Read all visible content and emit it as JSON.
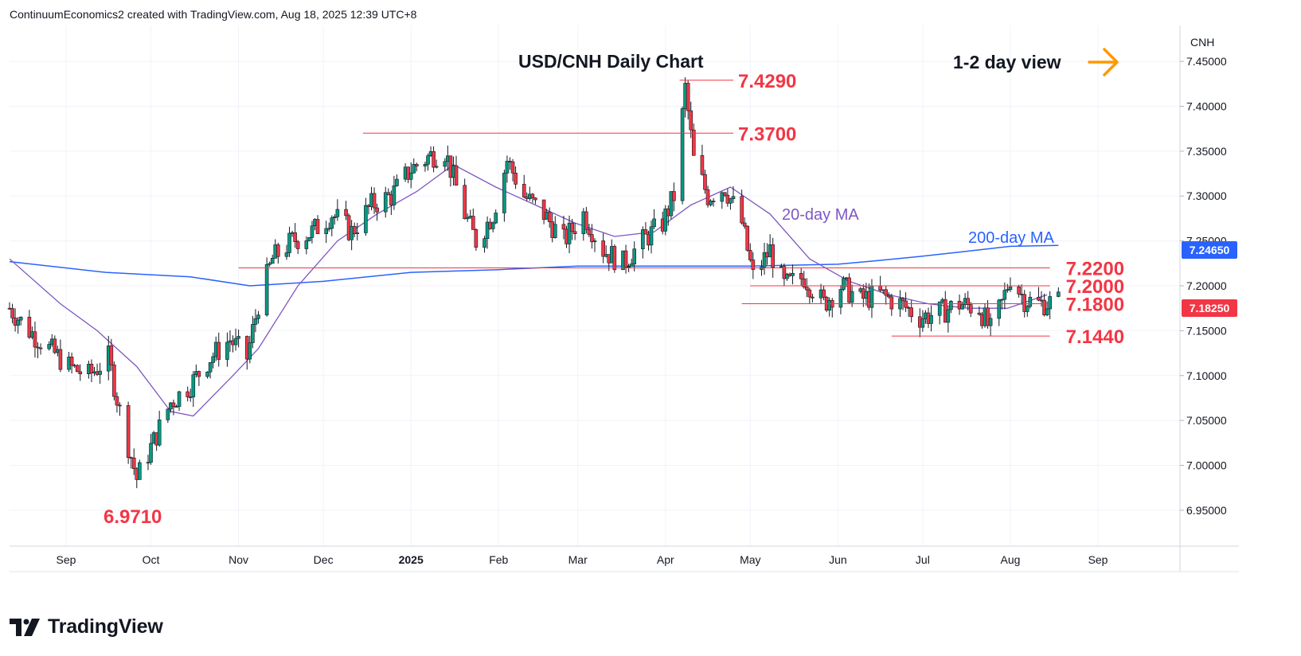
{
  "header": {
    "text": "ContinuumEconomics2 created with TradingView.com, Aug 18, 2025 12:39 UTC+8"
  },
  "brand": {
    "name": "TradingView"
  },
  "colors": {
    "up": "#089981",
    "down": "#f23645",
    "ma20": "#7e57c2",
    "ma200": "#2962ff",
    "arrow": "#ff9800",
    "level": "#f23645"
  },
  "chart_data": {
    "type": "candlestick",
    "title": "USD/CNH Daily Chart",
    "view": "1-2 day view",
    "currency": "CNH",
    "last_price": "7.18250",
    "ma200_value": "7.24650",
    "ylim": [
      6.91,
      7.49
    ],
    "y_ticks": [
      "7.45000",
      "7.40000",
      "7.35000",
      "7.30000",
      "7.25000",
      "7.20000",
      "7.15000",
      "7.10000",
      "7.05000",
      "7.00000",
      "6.95000"
    ],
    "x_ticks": [
      "Sep",
      "Oct",
      "Nov",
      "Dec",
      "2025",
      "Feb",
      "Mar",
      "Apr",
      "May",
      "Jun",
      "Jul",
      "Aug",
      "Sep"
    ],
    "x_start": "2024-08-12",
    "x_end": "2025-09-30",
    "levels": [
      {
        "label": "7.4290",
        "value": 7.429,
        "from": "2025-04-06",
        "to": "2025-04-25"
      },
      {
        "label": "7.3700",
        "value": 7.37,
        "from": "2024-12-15",
        "to": "2025-04-25"
      },
      {
        "label": "7.2200",
        "value": 7.22,
        "from": "2024-11-01",
        "to": "2025-08-15"
      },
      {
        "label": "7.2000",
        "value": 7.2,
        "from": "2025-05-01",
        "to": "2025-08-15"
      },
      {
        "label": "7.1800",
        "value": 7.18,
        "from": "2025-04-28",
        "to": "2025-08-15"
      },
      {
        "label": "7.1440",
        "value": 7.144,
        "from": "2025-06-20",
        "to": "2025-08-15"
      },
      {
        "label": "6.9710",
        "value": 6.971,
        "from": "2024-09-26",
        "to": "2024-09-26"
      }
    ],
    "annotations": [
      {
        "text": "20-day MA",
        "series": "ma20"
      },
      {
        "text": "200-day MA",
        "series": "ma200"
      }
    ],
    "closes": [
      [
        "2024-08-12",
        7.175
      ],
      [
        "2024-08-19",
        7.15
      ],
      [
        "2024-08-26",
        7.13
      ],
      [
        "2024-09-02",
        7.11
      ],
      [
        "2024-09-09",
        7.1
      ],
      [
        "2024-09-16",
        7.12
      ],
      [
        "2024-09-20",
        7.06
      ],
      [
        "2024-09-24",
        7.01
      ],
      [
        "2024-09-26",
        6.985
      ],
      [
        "2024-10-01",
        7.02
      ],
      [
        "2024-10-08",
        7.07
      ],
      [
        "2024-10-15",
        7.09
      ],
      [
        "2024-10-22",
        7.12
      ],
      [
        "2024-10-29",
        7.14
      ],
      [
        "2024-11-04",
        7.12
      ],
      [
        "2024-11-08",
        7.18
      ],
      [
        "2024-11-13",
        7.23
      ],
      [
        "2024-11-20",
        7.25
      ],
      [
        "2024-11-27",
        7.26
      ],
      [
        "2024-12-04",
        7.28
      ],
      [
        "2024-12-11",
        7.26
      ],
      [
        "2024-12-18",
        7.29
      ],
      [
        "2024-12-25",
        7.3
      ],
      [
        "2025-01-01",
        7.33
      ],
      [
        "2025-01-08",
        7.345
      ],
      [
        "2025-01-13",
        7.35
      ],
      [
        "2025-01-20",
        7.28
      ],
      [
        "2025-01-24",
        7.25
      ],
      [
        "2025-01-30",
        7.28
      ],
      [
        "2025-02-04",
        7.34
      ],
      [
        "2025-02-10",
        7.3
      ],
      [
        "2025-02-17",
        7.28
      ],
      [
        "2025-02-24",
        7.25
      ],
      [
        "2025-03-03",
        7.28
      ],
      [
        "2025-03-10",
        7.24
      ],
      [
        "2025-03-17",
        7.225
      ],
      [
        "2025-03-24",
        7.25
      ],
      [
        "2025-03-31",
        7.27
      ],
      [
        "2025-04-04",
        7.3
      ],
      [
        "2025-04-08",
        7.42
      ],
      [
        "2025-04-11",
        7.34
      ],
      [
        "2025-04-16",
        7.3
      ],
      [
        "2025-04-22",
        7.31
      ],
      [
        "2025-04-28",
        7.27
      ],
      [
        "2025-05-02",
        7.21
      ],
      [
        "2025-05-08",
        7.24
      ],
      [
        "2025-05-13",
        7.2
      ],
      [
        "2025-05-20",
        7.21
      ],
      [
        "2025-05-27",
        7.18
      ],
      [
        "2025-06-02",
        7.2
      ],
      [
        "2025-06-09",
        7.185
      ],
      [
        "2025-06-16",
        7.19
      ],
      [
        "2025-06-23",
        7.18
      ],
      [
        "2025-06-30",
        7.165
      ],
      [
        "2025-07-07",
        7.17
      ],
      [
        "2025-07-14",
        7.18
      ],
      [
        "2025-07-21",
        7.175
      ],
      [
        "2025-07-25",
        7.15
      ],
      [
        "2025-07-29",
        7.18
      ],
      [
        "2025-08-01",
        7.21
      ],
      [
        "2025-08-06",
        7.185
      ],
      [
        "2025-08-11",
        7.18
      ],
      [
        "2025-08-18",
        7.1825
      ]
    ],
    "ma20": [
      [
        "2024-08-12",
        7.23
      ],
      [
        "2024-08-30",
        7.18
      ],
      [
        "2024-09-12",
        7.15
      ],
      [
        "2024-09-26",
        7.11
      ],
      [
        "2024-10-08",
        7.06
      ],
      [
        "2024-10-16",
        7.055
      ],
      [
        "2024-10-30",
        7.1
      ],
      [
        "2024-11-08",
        7.13
      ],
      [
        "2024-11-22",
        7.2
      ],
      [
        "2024-12-06",
        7.25
      ],
      [
        "2024-12-20",
        7.28
      ],
      [
        "2025-01-03",
        7.305
      ],
      [
        "2025-01-16",
        7.335
      ],
      [
        "2025-01-31",
        7.31
      ],
      [
        "2025-02-14",
        7.29
      ],
      [
        "2025-02-28",
        7.27
      ],
      [
        "2025-03-14",
        7.255
      ],
      [
        "2025-03-28",
        7.26
      ],
      [
        "2025-04-10",
        7.29
      ],
      [
        "2025-04-24",
        7.31
      ],
      [
        "2025-05-08",
        7.28
      ],
      [
        "2025-05-22",
        7.23
      ],
      [
        "2025-06-05",
        7.205
      ],
      [
        "2025-06-19",
        7.19
      ],
      [
        "2025-07-03",
        7.18
      ],
      [
        "2025-07-17",
        7.175
      ],
      [
        "2025-07-31",
        7.175
      ],
      [
        "2025-08-14",
        7.19
      ]
    ],
    "ma200": [
      [
        "2024-08-12",
        7.227
      ],
      [
        "2024-09-15",
        7.215
      ],
      [
        "2024-10-15",
        7.21
      ],
      [
        "2024-11-05",
        7.2
      ],
      [
        "2024-12-01",
        7.205
      ],
      [
        "2025-01-01",
        7.215
      ],
      [
        "2025-02-01",
        7.218
      ],
      [
        "2025-03-01",
        7.222
      ],
      [
        "2025-04-01",
        7.222
      ],
      [
        "2025-05-01",
        7.222
      ],
      [
        "2025-06-01",
        7.224
      ],
      [
        "2025-06-15",
        7.228
      ],
      [
        "2025-07-01",
        7.233
      ],
      [
        "2025-07-15",
        7.238
      ],
      [
        "2025-08-01",
        7.244
      ],
      [
        "2025-08-18",
        7.245
      ]
    ]
  }
}
